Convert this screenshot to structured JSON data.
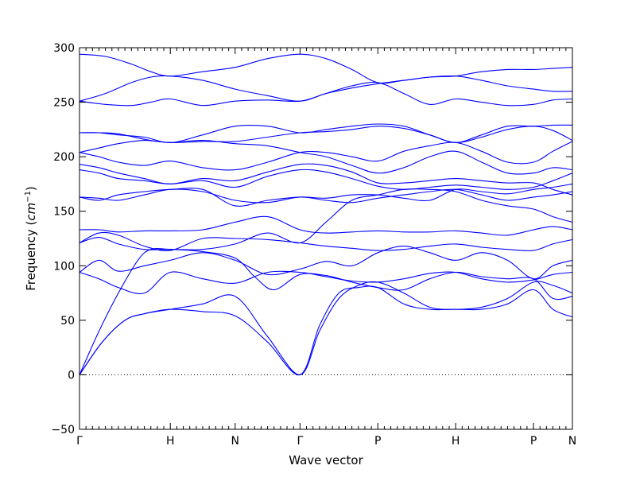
{
  "chart_data": {
    "type": "line",
    "title": "",
    "xlabel": "Wave vector",
    "ylabel": "Frequency (cm⁻¹)",
    "ylabel_main": "Frequency (",
    "ylabel_unit": "cm",
    "ylabel_exp": "−1",
    "ylabel_close": ")",
    "ylim": [
      -50,
      300
    ],
    "yticks": [
      -50,
      0,
      50,
      100,
      150,
      200,
      250,
      300
    ],
    "ytick_labels": [
      "−50",
      "0",
      "50",
      "100",
      "150",
      "200",
      "250",
      "300"
    ],
    "xlim": [
      0,
      7.6
    ],
    "high_symmetry_points": [
      {
        "label": "Γ",
        "x": 0
      },
      {
        "label": "H",
        "x": 1.4
      },
      {
        "label": "N",
        "x": 2.4
      },
      {
        "label": "Γ",
        "x": 3.4
      },
      {
        "label": "P",
        "x": 4.6
      },
      {
        "label": "H",
        "x": 5.8
      },
      {
        "label": "P",
        "x": 7.0
      },
      {
        "label": "N",
        "x": 7.6
      }
    ],
    "zero_line": true,
    "grid": false,
    "line_color": "#0000ff",
    "series": [
      {
        "x": [
          0,
          0.35,
          0.7,
          1.0,
          1.4,
          1.9,
          2.4,
          2.9,
          3.4,
          3.7,
          4.0,
          4.3,
          4.6,
          5.0,
          5.4,
          5.8,
          6.2,
          6.6,
          7.0,
          7.3,
          7.6
        ],
        "y": [
          0,
          30,
          50,
          56,
          60,
          65,
          72,
          35,
          0,
          40,
          70,
          82,
          85,
          75,
          62,
          60,
          62,
          70,
          85,
          82,
          75
        ]
      },
      {
        "x": [
          0,
          0.35,
          0.7,
          1.0,
          1.4,
          1.9,
          2.4,
          2.9,
          3.4,
          3.7,
          4.0,
          4.3,
          4.6,
          5.0,
          5.4,
          5.8,
          6.2,
          6.6,
          7.0,
          7.3,
          7.6
        ],
        "y": [
          0,
          30,
          50,
          56,
          60,
          58,
          54,
          30,
          0,
          45,
          75,
          80,
          80,
          65,
          60,
          60,
          60,
          65,
          78,
          60,
          53
        ]
      },
      {
        "x": [
          0,
          0.3,
          0.6,
          0.9,
          1.1,
          1.4,
          1.9,
          2.4,
          2.7,
          3.0,
          3.4,
          3.8,
          4.2,
          4.6,
          5.0,
          5.4,
          5.8,
          6.2,
          6.6,
          7.0,
          7.3,
          7.6
        ],
        "y": [
          0,
          40,
          75,
          105,
          115,
          115,
          113,
          107,
          90,
          78,
          92,
          91,
          85,
          80,
          78,
          88,
          94,
          90,
          88,
          88,
          70,
          72
        ]
      },
      {
        "x": [
          0,
          0.3,
          0.6,
          1.0,
          1.4,
          1.9,
          2.4,
          2.9,
          3.4,
          3.8,
          4.2,
          4.6,
          5.0,
          5.4,
          5.8,
          6.2,
          6.6,
          7.0,
          7.3,
          7.6
        ],
        "y": [
          94,
          88,
          80,
          75,
          94,
          88,
          84,
          94,
          94,
          90,
          86,
          85,
          88,
          93,
          94,
          88,
          85,
          87,
          92,
          94
        ]
      },
      {
        "x": [
          0,
          0.3,
          0.6,
          1.0,
          1.4,
          1.9,
          2.4,
          2.9,
          3.4,
          3.8,
          4.2,
          4.6,
          5.0,
          5.4,
          5.8,
          6.2,
          6.6,
          7.0,
          7.3,
          7.6
        ],
        "y": [
          94,
          105,
          95,
          100,
          105,
          112,
          105,
          92,
          97,
          104,
          100,
          112,
          118,
          112,
          105,
          112,
          105,
          88,
          100,
          105
        ]
      },
      {
        "x": [
          0,
          0.3,
          0.6,
          1.0,
          1.4,
          1.9,
          2.4,
          2.9,
          3.4,
          3.8,
          4.2,
          4.6,
          5.0,
          5.4,
          5.8,
          6.2,
          6.6,
          7.0,
          7.3,
          7.6
        ],
        "y": [
          121,
          126,
          120,
          115,
          115,
          115,
          120,
          130,
          121,
          140,
          160,
          165,
          170,
          170,
          168,
          160,
          155,
          152,
          145,
          140
        ]
      },
      {
        "x": [
          0,
          0.3,
          0.6,
          1.0,
          1.4,
          1.9,
          2.4,
          2.9,
          3.4,
          3.8,
          4.2,
          4.6,
          5.0,
          5.4,
          5.8,
          6.2,
          6.6,
          7.0,
          7.3,
          7.6
        ],
        "y": [
          121,
          130,
          128,
          118,
          114,
          125,
          125,
          124,
          121,
          118,
          116,
          114,
          115,
          118,
          120,
          117,
          115,
          114,
          120,
          124
        ]
      },
      {
        "x": [
          0,
          0.3,
          0.6,
          1.0,
          1.4,
          1.9,
          2.4,
          2.9,
          3.4,
          3.8,
          4.2,
          4.6,
          5.0,
          5.4,
          5.8,
          6.2,
          6.6,
          7.0,
          7.3,
          7.6
        ],
        "y": [
          133,
          133,
          131,
          132,
          132,
          133,
          140,
          145,
          133,
          130,
          131,
          132,
          131,
          131,
          132,
          130,
          128,
          133,
          136,
          133
        ]
      },
      {
        "x": [
          0,
          0.3,
          0.6,
          1.0,
          1.4,
          1.9,
          2.4,
          2.9,
          3.4,
          3.8,
          4.2,
          4.6,
          5.0,
          5.4,
          5.8,
          6.2,
          6.6,
          7.0,
          7.3,
          7.6
        ],
        "y": [
          163,
          162,
          160,
          165,
          170,
          168,
          160,
          158,
          163,
          160,
          158,
          162,
          165,
          168,
          170,
          165,
          160,
          163,
          165,
          168
        ]
      },
      {
        "x": [
          0,
          0.3,
          0.6,
          1.0,
          1.4,
          1.9,
          2.4,
          2.9,
          3.4,
          3.8,
          4.2,
          4.6,
          5.0,
          5.4,
          5.8,
          6.2,
          6.6,
          7.0,
          7.3,
          7.6
        ],
        "y": [
          163,
          160,
          165,
          168,
          170,
          170,
          155,
          160,
          163,
          162,
          165,
          165,
          162,
          160,
          170,
          168,
          166,
          170,
          172,
          175
        ]
      },
      {
        "x": [
          0,
          0.3,
          0.6,
          1.0,
          1.4,
          1.9,
          2.4,
          2.9,
          3.4,
          3.8,
          4.2,
          4.6,
          5.0,
          5.4,
          5.8,
          6.2,
          6.6,
          7.0,
          7.3,
          7.6
        ],
        "y": [
          188,
          185,
          180,
          178,
          175,
          178,
          172,
          182,
          188,
          186,
          180,
          173,
          170,
          172,
          174,
          172,
          170,
          172,
          178,
          185
        ]
      },
      {
        "x": [
          0,
          0.3,
          0.6,
          1.0,
          1.4,
          1.9,
          2.4,
          2.9,
          3.4,
          3.8,
          4.2,
          4.6,
          5.0,
          5.4,
          5.8,
          6.2,
          6.6,
          7.0,
          7.3,
          7.6
        ],
        "y": [
          193,
          190,
          185,
          180,
          175,
          180,
          178,
          186,
          193,
          192,
          186,
          176,
          176,
          178,
          180,
          178,
          176,
          176,
          170,
          165
        ]
      },
      {
        "x": [
          0,
          0.3,
          0.6,
          1.0,
          1.4,
          1.9,
          2.4,
          2.9,
          3.4,
          3.8,
          4.2,
          4.6,
          5.0,
          5.4,
          5.8,
          6.2,
          6.6,
          7.0,
          7.3,
          7.6
        ],
        "y": [
          204,
          200,
          195,
          192,
          196,
          190,
          188,
          195,
          204,
          204,
          200,
          196,
          205,
          210,
          213,
          205,
          195,
          195,
          205,
          214
        ]
      },
      {
        "x": [
          0,
          0.3,
          0.6,
          1.0,
          1.4,
          1.9,
          2.4,
          2.9,
          3.4,
          3.8,
          4.2,
          4.6,
          5.0,
          5.4,
          5.8,
          6.2,
          6.6,
          7.0,
          7.3,
          7.6
        ],
        "y": [
          204,
          208,
          212,
          215,
          213,
          215,
          212,
          210,
          204,
          200,
          192,
          185,
          190,
          200,
          205,
          195,
          185,
          185,
          190,
          188
        ]
      },
      {
        "x": [
          0,
          0.3,
          0.6,
          1.0,
          1.4,
          1.9,
          2.4,
          2.9,
          3.4,
          3.8,
          4.2,
          4.6,
          5.0,
          5.4,
          5.8,
          6.2,
          6.6,
          7.0,
          7.3,
          7.6
        ],
        "y": [
          222,
          222,
          220,
          218,
          213,
          220,
          228,
          228,
          222,
          225,
          228,
          230,
          228,
          220,
          213,
          220,
          228,
          228,
          229,
          229
        ]
      },
      {
        "x": [
          0,
          0.3,
          0.6,
          1.0,
          1.4,
          1.9,
          2.4,
          2.9,
          3.4,
          3.8,
          4.2,
          4.6,
          5.0,
          5.4,
          5.8,
          6.2,
          6.6,
          7.0,
          7.3,
          7.6
        ],
        "y": [
          222,
          222,
          221,
          216,
          213,
          214,
          214,
          218,
          222,
          223,
          225,
          228,
          226,
          220,
          213,
          218,
          225,
          228,
          224,
          215
        ]
      },
      {
        "x": [
          0,
          0.4,
          0.8,
          1.1,
          1.4,
          1.9,
          2.4,
          2.9,
          3.4,
          3.8,
          4.2,
          4.6,
          5.0,
          5.4,
          5.8,
          6.2,
          6.6,
          7.0,
          7.3,
          7.6
        ],
        "y": [
          251,
          248,
          247,
          250,
          253,
          247,
          251,
          252,
          251,
          258,
          265,
          268,
          258,
          248,
          253,
          250,
          247,
          248,
          252,
          253
        ]
      },
      {
        "x": [
          0,
          0.4,
          0.8,
          1.1,
          1.4,
          1.9,
          2.4,
          2.9,
          3.4,
          3.8,
          4.2,
          4.6,
          5.0,
          5.4,
          5.8,
          6.2,
          6.6,
          7.0,
          7.3,
          7.6
        ],
        "y": [
          251,
          258,
          268,
          273,
          274,
          270,
          262,
          256,
          251,
          258,
          263,
          267,
          270,
          273,
          274,
          270,
          265,
          262,
          260,
          260
        ]
      },
      {
        "x": [
          0,
          0.4,
          0.8,
          1.1,
          1.4,
          1.9,
          2.4,
          2.9,
          3.4,
          3.8,
          4.2,
          4.6,
          5.0,
          5.4,
          5.8,
          6.2,
          6.6,
          7.0,
          7.3,
          7.6
        ],
        "y": [
          294,
          292,
          285,
          278,
          274,
          278,
          282,
          290,
          294,
          290,
          280,
          268,
          270,
          273,
          274,
          278,
          280,
          280,
          281,
          282
        ]
      }
    ]
  }
}
